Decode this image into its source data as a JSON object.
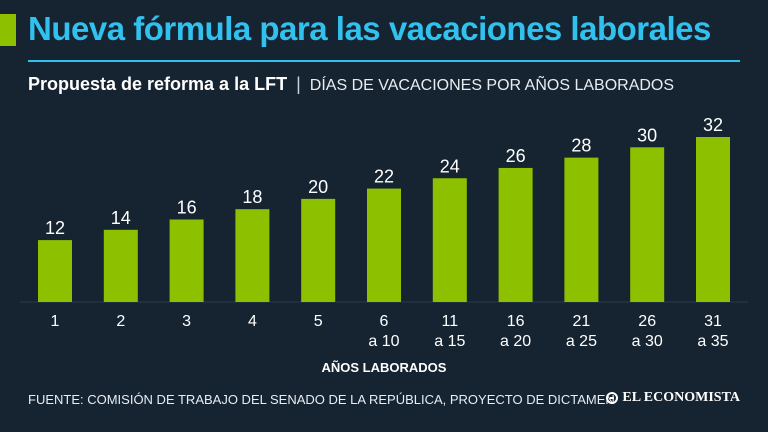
{
  "header": {
    "title": "Nueva fórmula para las vacaciones laborales",
    "subtitle_bold": "Propuesta de reforma a la LFT",
    "subtitle_separator": "|",
    "subtitle_caps": "DÍAS DE VACACIONES POR AÑOS LABORADOS"
  },
  "colors": {
    "background": "#162331",
    "title": "#31c1ee",
    "bars": "#8dc100"
  },
  "chart_data": {
    "type": "bar",
    "title": "",
    "xlabel": "AÑOS LABORADOS",
    "ylabel": "",
    "ylim": [
      0,
      32
    ],
    "grid": false,
    "categories": [
      [
        "1"
      ],
      [
        "2"
      ],
      [
        "3"
      ],
      [
        "4"
      ],
      [
        "5"
      ],
      [
        "6",
        "a 10"
      ],
      [
        "11",
        "a 15"
      ],
      [
        "16",
        "a 20"
      ],
      [
        "21",
        "a 25"
      ],
      [
        "26",
        "a 30"
      ],
      [
        "31",
        "a 35"
      ]
    ],
    "values": [
      12,
      14,
      16,
      18,
      20,
      22,
      24,
      26,
      28,
      30,
      32
    ]
  },
  "footer": {
    "source": "FUENTE: COMISIÓN DE TRABAJO DEL SENADO DE LA REPÚBLICA, PROYECTO DE DICTAMEN",
    "logo_text": "EL ECONOMISTA",
    "logo_icon": "el-economista-logo-icon"
  }
}
